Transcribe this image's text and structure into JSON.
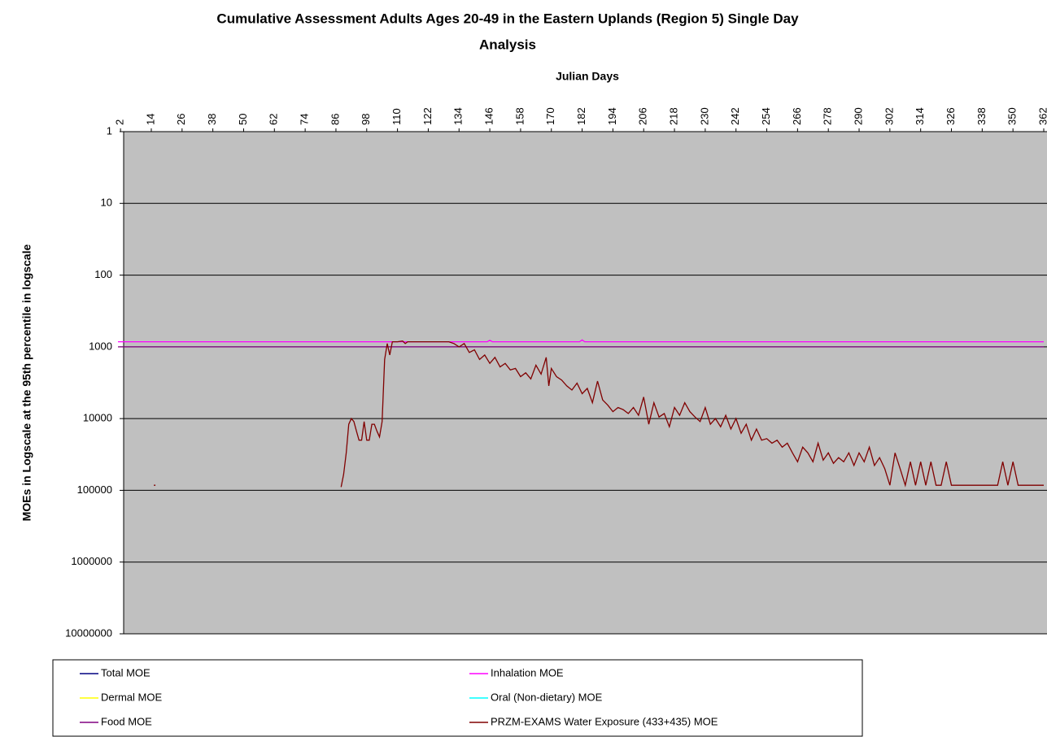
{
  "chart_data": {
    "type": "line",
    "title": "Cumulative Assessment Adults Ages 20-49 in the Eastern Uplands (Region 5) Single Day",
    "title_line2": "Analysis",
    "x_label": "Julian Days",
    "y_label": "MOEs in Logscale at the 95th percentile in logscale",
    "xlim": [
      1,
      362
    ],
    "xticks": [
      2,
      14,
      26,
      38,
      50,
      62,
      74,
      86,
      98,
      110,
      122,
      134,
      146,
      158,
      170,
      182,
      194,
      206,
      218,
      230,
      242,
      254,
      266,
      278,
      290,
      302,
      314,
      326,
      338,
      350,
      362
    ],
    "ylim": [
      1,
      10000000
    ],
    "yticks": [
      1,
      10,
      100,
      1000,
      10000,
      100000,
      1000000,
      10000000
    ],
    "log_y": true,
    "y_inverted": true,
    "grid": true,
    "legend": "bottom",
    "series": [
      {
        "name": "Total MOE",
        "color": "#000080",
        "x": [],
        "values": []
      },
      {
        "name": "Inhalation MOE",
        "color": "#ff00ff",
        "x": [
          1,
          145,
          146,
          147,
          181,
          182,
          183,
          362
        ],
        "values": [
          850,
          850,
          810,
          850,
          850,
          800,
          850,
          850
        ]
      },
      {
        "name": "Dermal MOE",
        "color": "#ffff00",
        "x": [],
        "values": []
      },
      {
        "name": "Oral (Non-dietary) MOE",
        "color": "#00ffff",
        "x": [],
        "values": []
      },
      {
        "name": "Food MOE",
        "color": "#800080",
        "x": [
          1,
          362
        ],
        "values": [
          1000,
          1000
        ]
      },
      {
        "name": "PRZM-EXAMS Water Exposure (433+435) MOE",
        "color": "#800000",
        "x": [
          15,
          16,
          88,
          89,
          90,
          91,
          92,
          93,
          94,
          95,
          96,
          97,
          98,
          99,
          100,
          101,
          102,
          103,
          104,
          105,
          106,
          107,
          108,
          110,
          112,
          113,
          114,
          120,
          126,
          130,
          132,
          134,
          136,
          138,
          140,
          142,
          144,
          146,
          148,
          150,
          152,
          154,
          156,
          158,
          160,
          162,
          164,
          166,
          168,
          169,
          170,
          172,
          174,
          176,
          178,
          180,
          182,
          184,
          186,
          188,
          190,
          192,
          194,
          196,
          198,
          200,
          202,
          204,
          206,
          208,
          210,
          212,
          214,
          216,
          218,
          220,
          222,
          224,
          226,
          228,
          230,
          232,
          234,
          236,
          238,
          240,
          242,
          244,
          246,
          248,
          250,
          252,
          254,
          256,
          258,
          260,
          262,
          264,
          266,
          268,
          270,
          272,
          274,
          276,
          278,
          280,
          282,
          284,
          286,
          288,
          290,
          292,
          294,
          296,
          298,
          300,
          302,
          304,
          306,
          308,
          310,
          312,
          314,
          316,
          318,
          320,
          322,
          324,
          326,
          340,
          344,
          346,
          348,
          350,
          352,
          362
        ],
        "values": [
          85000,
          null,
          90000,
          60000,
          30000,
          12000,
          10000,
          11000,
          15000,
          20000,
          20000,
          11000,
          20000,
          20000,
          12000,
          12000,
          15000,
          18000,
          11000,
          1500,
          900,
          1300,
          850,
          850,
          830,
          900,
          850,
          850,
          850,
          850,
          900,
          1000,
          900,
          1200,
          1100,
          1500,
          1300,
          1700,
          1400,
          1900,
          1700,
          2100,
          2000,
          2600,
          2300,
          2800,
          1800,
          2400,
          1400,
          3500,
          2000,
          2600,
          2900,
          3500,
          4000,
          3200,
          4500,
          3800,
          6000,
          3000,
          5500,
          6500,
          8000,
          7000,
          7500,
          8500,
          7000,
          9000,
          5000,
          12000,
          6000,
          9500,
          8500,
          13000,
          7000,
          9000,
          6000,
          8000,
          9500,
          11000,
          7000,
          12000,
          10000,
          13000,
          9000,
          14000,
          10000,
          16000,
          12000,
          20000,
          14000,
          20000,
          19000,
          22000,
          20000,
          25000,
          22000,
          30000,
          40000,
          25000,
          30000,
          40000,
          22000,
          38000,
          30000,
          42000,
          35000,
          40000,
          30000,
          45000,
          30000,
          40000,
          25000,
          45000,
          35000,
          50000,
          85000,
          30000,
          50000,
          85000,
          40000,
          85000,
          40000,
          85000,
          40000,
          85000,
          85000,
          40000,
          85000,
          85000,
          85000,
          40000,
          85000,
          40000,
          85000,
          85000
        ]
      }
    ]
  }
}
